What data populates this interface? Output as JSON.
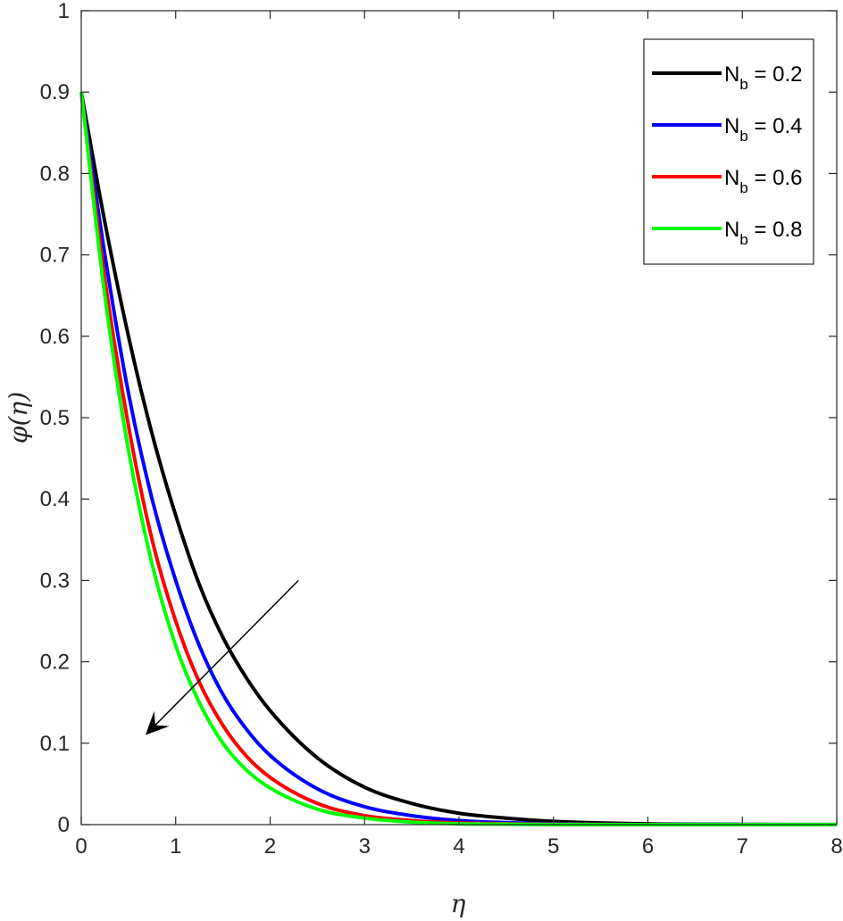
{
  "chart_data": {
    "type": "line",
    "xlabel": "η",
    "ylabel": "φ(η)",
    "xlim": [
      0,
      8
    ],
    "ylim": [
      0,
      1
    ],
    "xticks": [
      "0",
      "1",
      "2",
      "3",
      "4",
      "5",
      "6",
      "7",
      "8"
    ],
    "yticks": [
      "0",
      "0.1",
      "0.2",
      "0.3",
      "0.4",
      "0.5",
      "0.6",
      "0.7",
      "0.8",
      "0.9",
      "1"
    ],
    "grid": false,
    "legend_position": "top-right",
    "series": [
      {
        "name": "N_b = 0.2",
        "label_main": "N",
        "label_sub": "b",
        "label_rest": " = 0.2",
        "color": "#000000",
        "x": [
          0,
          0.25,
          0.5,
          0.75,
          1,
          1.25,
          1.5,
          1.75,
          2,
          2.5,
          3,
          3.5,
          4,
          4.5,
          5,
          6,
          7,
          8
        ],
        "y": [
          0.9,
          0.74,
          0.6,
          0.48,
          0.38,
          0.295,
          0.23,
          0.18,
          0.14,
          0.082,
          0.046,
          0.026,
          0.014,
          0.008,
          0.004,
          0.001,
          0.0003,
          0.0001
        ]
      },
      {
        "name": "N_b = 0.4",
        "label_main": "N",
        "label_sub": "b",
        "label_rest": " = 0.4",
        "color": "#0000ff",
        "x": [
          0,
          0.25,
          0.5,
          0.75,
          1,
          1.25,
          1.5,
          1.75,
          2,
          2.5,
          3,
          3.5,
          4,
          4.5,
          5,
          6,
          7,
          8
        ],
        "y": [
          0.9,
          0.7,
          0.53,
          0.4,
          0.3,
          0.22,
          0.16,
          0.117,
          0.085,
          0.044,
          0.022,
          0.011,
          0.005,
          0.0025,
          0.001,
          0.0002,
          0.0001,
          0
        ]
      },
      {
        "name": "N_b = 0.6",
        "label_main": "N",
        "label_sub": "b",
        "label_rest": " = 0.6",
        "color": "#ff0000",
        "x": [
          0,
          0.25,
          0.5,
          0.75,
          1,
          1.25,
          1.5,
          1.75,
          2,
          2.5,
          3,
          3.5,
          4,
          4.5,
          5,
          6,
          7,
          8
        ],
        "y": [
          0.9,
          0.67,
          0.49,
          0.35,
          0.25,
          0.175,
          0.122,
          0.084,
          0.058,
          0.026,
          0.011,
          0.005,
          0.002,
          0.001,
          0.0004,
          0.0001,
          0,
          0
        ]
      },
      {
        "name": "N_b = 0.8",
        "label_main": "N",
        "label_sub": "b",
        "label_rest": " = 0.8",
        "color": "#00ff00",
        "x": [
          0,
          0.25,
          0.5,
          0.75,
          1,
          1.25,
          1.5,
          1.75,
          2,
          2.5,
          3,
          3.5,
          4,
          4.5,
          5,
          6,
          7,
          8
        ],
        "y": [
          0.9,
          0.65,
          0.46,
          0.32,
          0.22,
          0.15,
          0.1,
          0.067,
          0.045,
          0.019,
          0.008,
          0.003,
          0.001,
          0.0005,
          0.0002,
          0,
          0,
          0
        ]
      }
    ],
    "annotations": [
      {
        "type": "arrow",
        "from": [
          2.3,
          0.3
        ],
        "to": [
          0.68,
          0.11
        ]
      }
    ]
  }
}
